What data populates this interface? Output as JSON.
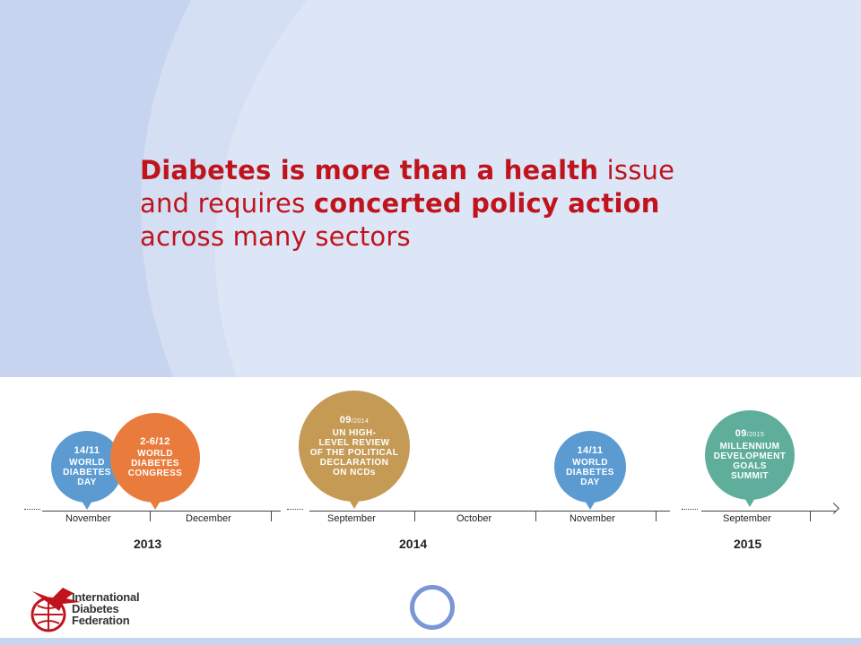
{
  "headline": {
    "p1": "Diabetes is more than a health",
    "p2": " issue and requires ",
    "p3": "concerted policy action",
    "p4": " across many sectors"
  },
  "events": [
    {
      "date": "14/11",
      "date_suffix": "",
      "lines": [
        "WORLD",
        "DIABETES",
        "DAY"
      ],
      "color": "#5b9bd2"
    },
    {
      "date": "2-6/12",
      "date_suffix": "",
      "lines": [
        "WORLD",
        "DIABETES",
        "CONGRESS"
      ],
      "color": "#e97c3d"
    },
    {
      "date": "09",
      "date_suffix": "/2014",
      "lines": [
        "UN HIGH-",
        "LEVEL REVIEW",
        "OF THE POLITICAL",
        "DECLARATION",
        "ON NCDs"
      ],
      "color": "#c59a55"
    },
    {
      "date": "14/11",
      "date_suffix": "",
      "lines": [
        "WORLD",
        "DIABETES",
        "DAY"
      ],
      "color": "#5b9bd2"
    },
    {
      "date": "09",
      "date_suffix": "/2015",
      "lines": [
        "MILLENNIUM",
        "DEVELOPMENT",
        "GOALS",
        "SUMMIT"
      ],
      "color": "#5fae9b"
    }
  ],
  "months": [
    "November",
    "December",
    "September",
    "October",
    "November",
    "September"
  ],
  "years": [
    "2013",
    "2014",
    "2015"
  ],
  "logo": {
    "lines": [
      "International",
      "Diabetes",
      "Federation"
    ]
  },
  "colors": {
    "headline": "#c0141d",
    "background": "#c6d4ef",
    "ring": "#7a96d4"
  }
}
